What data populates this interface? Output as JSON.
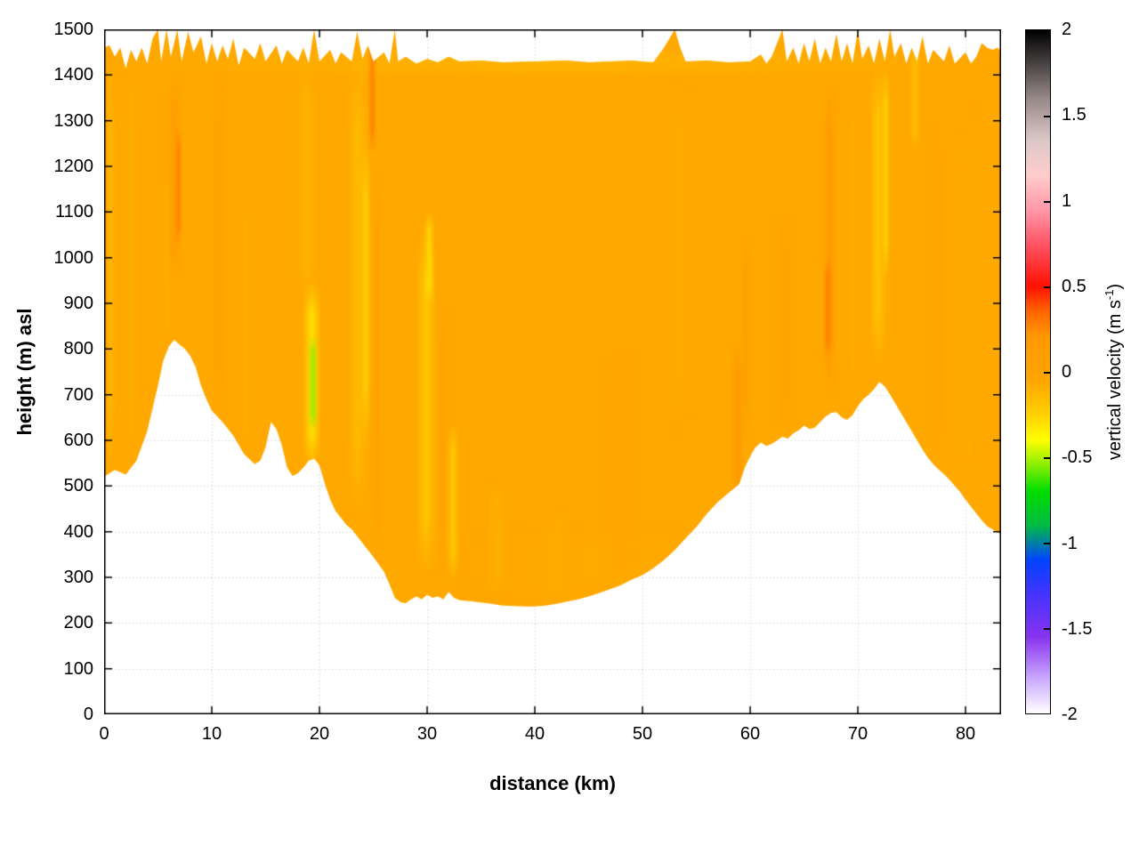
{
  "figure": {
    "background": "#ffffff"
  },
  "axes": {
    "xlabel": "distance (km)",
    "ylabel": "height (m) asl"
  },
  "colorbar": {
    "label_prefix": "vertical velocity (m s",
    "label_sup": "-1",
    "label_suffix": ")"
  },
  "chart_data": {
    "type": "heatmap",
    "title": "",
    "xlabel": "distance (km)",
    "ylabel": "height (m) asl",
    "colorbar_label": "vertical velocity (m s^-1)",
    "xlim": [
      0,
      83.3
    ],
    "ylim": [
      0,
      1500
    ],
    "clim": [
      -2,
      2
    ],
    "x_ticks": [
      0,
      10,
      20,
      30,
      40,
      50,
      60,
      70,
      80
    ],
    "y_ticks": [
      0,
      100,
      200,
      300,
      400,
      500,
      600,
      700,
      800,
      900,
      1000,
      1100,
      1200,
      1300,
      1400,
      1500
    ],
    "cb_ticks": [
      -2,
      -1.5,
      -1,
      -0.5,
      0,
      0.5,
      1,
      1.5,
      2
    ],
    "grid": true,
    "grid_color": "#c4c4c4",
    "base_color": "#FFA800",
    "palette": [
      {
        "v": -2.0,
        "c": "#ffffff"
      },
      {
        "v": -1.8,
        "c": "#ccaaff"
      },
      {
        "v": -1.55,
        "c": "#8833ee"
      },
      {
        "v": -1.3,
        "c": "#4433ff"
      },
      {
        "v": -1.1,
        "c": "#0044ff"
      },
      {
        "v": -0.9,
        "c": "#00bb44"
      },
      {
        "v": -0.7,
        "c": "#00dd00"
      },
      {
        "v": -0.55,
        "c": "#88ee00"
      },
      {
        "v": -0.4,
        "c": "#ffff00"
      },
      {
        "v": -0.25,
        "c": "#ffd000"
      },
      {
        "v": -0.05,
        "c": "#ffa500"
      },
      {
        "v": 0.2,
        "c": "#ff9900"
      },
      {
        "v": 0.35,
        "c": "#ff6600"
      },
      {
        "v": 0.5,
        "c": "#ff1100"
      },
      {
        "v": 0.75,
        "c": "#ff5566"
      },
      {
        "v": 0.95,
        "c": "#ff99aa"
      },
      {
        "v": 1.15,
        "c": "#ffcccc"
      },
      {
        "v": 1.35,
        "c": "#ddc8c8"
      },
      {
        "v": 1.6,
        "c": "#988888"
      },
      {
        "v": 1.8,
        "c": "#4a4444"
      },
      {
        "v": 2.0,
        "c": "#000000"
      }
    ],
    "terrain": {
      "x": [
        0,
        1,
        2,
        3,
        4,
        5,
        5.5,
        6,
        6.5,
        7,
        7.5,
        8,
        8.5,
        9,
        9.5,
        10,
        11,
        12,
        13,
        14,
        14.5,
        15,
        15.5,
        16,
        16.5,
        17,
        17.5,
        18,
        18.5,
        19,
        19.5,
        20,
        20.5,
        21,
        21.5,
        22,
        22.5,
        23,
        24,
        25,
        26,
        26.5,
        27,
        27.5,
        28,
        28.5,
        29,
        29.5,
        30,
        30.5,
        31,
        31.5,
        32,
        32.5,
        33,
        34,
        35,
        36,
        37,
        38,
        39,
        40,
        41,
        42,
        43,
        44,
        45,
        46,
        47,
        48,
        49,
        50,
        51,
        52,
        53,
        54,
        55,
        56,
        57,
        58,
        58.5,
        59,
        59.5,
        60,
        60.5,
        61,
        61.5,
        62,
        62.5,
        63,
        63.5,
        64,
        64.5,
        65,
        65.5,
        66,
        66.5,
        67,
        67.5,
        68,
        68.5,
        69,
        69.5,
        70,
        70.5,
        71,
        71.5,
        72,
        72.5,
        73,
        73.5,
        74,
        74.5,
        75,
        75.5,
        76,
        76.5,
        77,
        77.5,
        78,
        78.5,
        79,
        79.5,
        80,
        80.5,
        81,
        81.5,
        82,
        82.5,
        83,
        83.3
      ],
      "h": [
        520,
        535,
        525,
        555,
        620,
        720,
        775,
        805,
        820,
        810,
        800,
        785,
        760,
        720,
        690,
        665,
        640,
        610,
        570,
        548,
        555,
        585,
        640,
        625,
        590,
        540,
        522,
        528,
        540,
        555,
        560,
        545,
        505,
        470,
        445,
        430,
        415,
        405,
        375,
        345,
        312,
        285,
        255,
        246,
        243,
        252,
        258,
        252,
        262,
        255,
        258,
        252,
        268,
        255,
        250,
        248,
        245,
        242,
        238,
        237,
        236,
        236,
        238,
        242,
        247,
        252,
        258,
        266,
        274,
        283,
        295,
        305,
        320,
        338,
        360,
        385,
        410,
        440,
        465,
        485,
        495,
        505,
        540,
        565,
        585,
        595,
        588,
        592,
        600,
        608,
        604,
        615,
        622,
        632,
        625,
        628,
        640,
        652,
        660,
        662,
        650,
        645,
        655,
        675,
        690,
        700,
        712,
        728,
        718,
        700,
        680,
        660,
        640,
        620,
        600,
        580,
        562,
        548,
        536,
        526,
        514,
        500,
        487,
        470,
        455,
        440,
        425,
        412,
        405,
        398,
        395
      ]
    },
    "top": {
      "x": [
        0,
        0.5,
        1,
        1.5,
        2,
        2.5,
        3,
        3.5,
        4,
        4.5,
        5,
        5.3,
        5.8,
        6.2,
        6.8,
        7.2,
        7.8,
        8.3,
        9,
        9.5,
        10,
        10.5,
        11,
        11.5,
        12,
        12.5,
        13,
        14,
        14.5,
        15,
        16,
        16.5,
        17,
        18,
        18.5,
        19,
        19.5,
        20,
        21,
        21.5,
        22,
        23,
        23.5,
        24,
        24.5,
        25,
        26,
        26.5,
        27,
        27.3,
        28,
        29,
        30,
        31,
        32,
        33,
        35,
        37,
        40,
        43,
        45,
        47,
        49,
        51,
        52,
        53,
        53.5,
        54,
        56,
        58,
        60,
        61,
        61.5,
        62,
        63,
        63.4,
        64,
        64.5,
        65,
        65.5,
        66,
        66.5,
        67,
        67.5,
        68,
        68.5,
        69,
        69.5,
        70,
        70.4,
        71,
        71.5,
        72,
        72.5,
        73,
        73.4,
        74,
        74.5,
        75,
        75.5,
        76,
        76.5,
        77,
        78,
        78.5,
        79,
        80,
        80.5,
        81,
        81.5,
        82,
        82.5,
        83,
        83.3
      ],
      "h": [
        1460,
        1465,
        1440,
        1460,
        1415,
        1455,
        1430,
        1460,
        1425,
        1480,
        1500,
        1430,
        1500,
        1440,
        1500,
        1430,
        1495,
        1450,
        1485,
        1425,
        1470,
        1430,
        1465,
        1435,
        1480,
        1420,
        1460,
        1435,
        1470,
        1430,
        1465,
        1425,
        1455,
        1430,
        1460,
        1425,
        1500,
        1430,
        1455,
        1425,
        1450,
        1430,
        1495,
        1435,
        1465,
        1430,
        1450,
        1425,
        1500,
        1430,
        1440,
        1425,
        1435,
        1428,
        1440,
        1430,
        1432,
        1428,
        1430,
        1432,
        1428,
        1430,
        1432,
        1428,
        1460,
        1500,
        1460,
        1430,
        1432,
        1428,
        1430,
        1445,
        1425,
        1440,
        1500,
        1430,
        1460,
        1425,
        1470,
        1430,
        1480,
        1425,
        1460,
        1430,
        1490,
        1430,
        1470,
        1425,
        1500,
        1435,
        1465,
        1425,
        1480,
        1430,
        1500,
        1440,
        1470,
        1425,
        1460,
        1430,
        1485,
        1425,
        1455,
        1430,
        1465,
        1425,
        1450,
        1425,
        1440,
        1470,
        1460,
        1455,
        1460,
        1450
      ]
    },
    "streaks": [
      {
        "x": 0.6,
        "w": 1.2,
        "y0": 520,
        "y1": 1440,
        "v": -0.18,
        "a": 0.5
      },
      {
        "x": 2.6,
        "w": 1.0,
        "y0": 540,
        "y1": 1430,
        "v": -0.15,
        "a": 0.45
      },
      {
        "x": 5.8,
        "w": 0.8,
        "y0": 800,
        "y1": 1200,
        "v": -0.15,
        "a": 0.4
      },
      {
        "x": 6.6,
        "w": 1.4,
        "y0": 950,
        "y1": 1400,
        "v": 0.2,
        "a": 0.7
      },
      {
        "x": 6.9,
        "w": 0.7,
        "y0": 1030,
        "y1": 1280,
        "v": 0.3,
        "a": 0.7
      },
      {
        "x": 10.6,
        "w": 1.2,
        "y0": 650,
        "y1": 1420,
        "v": 0.12,
        "a": 0.45
      },
      {
        "x": 13.2,
        "w": 1.0,
        "y0": 560,
        "y1": 1150,
        "v": -0.15,
        "a": 0.4
      },
      {
        "x": 18.8,
        "w": 2.2,
        "y0": 900,
        "y1": 1430,
        "v": -0.18,
        "a": 0.5
      },
      {
        "x": 19.3,
        "w": 1.8,
        "y0": 540,
        "y1": 950,
        "v": -0.35,
        "a": 0.8
      },
      {
        "x": 19.4,
        "w": 0.9,
        "y0": 620,
        "y1": 830,
        "v": -0.55,
        "a": 0.8
      },
      {
        "x": 23.6,
        "w": 2.4,
        "y0": 420,
        "y1": 1460,
        "v": -0.22,
        "a": 0.55
      },
      {
        "x": 24.3,
        "w": 1.0,
        "y0": 600,
        "y1": 1250,
        "v": -0.3,
        "a": 0.6
      },
      {
        "x": 24.9,
        "w": 0.9,
        "y0": 1230,
        "y1": 1500,
        "v": 0.28,
        "a": 0.8
      },
      {
        "x": 25.4,
        "w": 0.6,
        "y0": 350,
        "y1": 1200,
        "v": 0.15,
        "a": 0.5
      },
      {
        "x": 29.9,
        "w": 2.0,
        "y0": 300,
        "y1": 1080,
        "v": -0.28,
        "a": 0.65
      },
      {
        "x": 30.2,
        "w": 1.0,
        "y0": 900,
        "y1": 1100,
        "v": -0.35,
        "a": 0.6
      },
      {
        "x": 31.4,
        "w": 0.8,
        "y0": 300,
        "y1": 900,
        "v": 0.12,
        "a": 0.4
      },
      {
        "x": 32.4,
        "w": 1.2,
        "y0": 290,
        "y1": 640,
        "v": -0.3,
        "a": 0.6
      },
      {
        "x": 36.5,
        "w": 2.2,
        "y0": 250,
        "y1": 520,
        "v": -0.15,
        "a": 0.4
      },
      {
        "x": 42,
        "w": 2.0,
        "y0": 240,
        "y1": 460,
        "v": -0.13,
        "a": 0.35
      },
      {
        "x": 48,
        "w": 2.5,
        "y0": 290,
        "y1": 800,
        "v": 0.1,
        "a": 0.3
      },
      {
        "x": 53.5,
        "w": 1.8,
        "y0": 600,
        "y1": 1420,
        "v": -0.12,
        "a": 0.35
      },
      {
        "x": 58.8,
        "w": 1.2,
        "y0": 400,
        "y1": 820,
        "v": 0.22,
        "a": 0.6
      },
      {
        "x": 59.6,
        "w": 0.9,
        "y0": 600,
        "y1": 1050,
        "v": 0.15,
        "a": 0.5
      },
      {
        "x": 63.2,
        "w": 1.0,
        "y0": 620,
        "y1": 1100,
        "v": 0.12,
        "a": 0.4
      },
      {
        "x": 67.4,
        "w": 1.3,
        "y0": 700,
        "y1": 1380,
        "v": 0.22,
        "a": 0.65
      },
      {
        "x": 67.2,
        "w": 0.8,
        "y0": 780,
        "y1": 1000,
        "v": 0.32,
        "a": 0.6
      },
      {
        "x": 69.5,
        "w": 0.9,
        "y0": 700,
        "y1": 1350,
        "v": -0.15,
        "a": 0.4
      },
      {
        "x": 71.9,
        "w": 1.8,
        "y0": 760,
        "y1": 1430,
        "v": -0.28,
        "a": 0.6
      },
      {
        "x": 72.6,
        "w": 0.9,
        "y0": 950,
        "y1": 1420,
        "v": -0.35,
        "a": 0.55
      },
      {
        "x": 75.3,
        "w": 1.1,
        "y0": 1230,
        "y1": 1470,
        "v": -0.25,
        "a": 0.5
      },
      {
        "x": 77.5,
        "w": 1.0,
        "y0": 560,
        "y1": 1300,
        "v": 0.1,
        "a": 0.3
      },
      {
        "x": 80.3,
        "w": 1.6,
        "y0": 430,
        "y1": 1350,
        "v": -0.12,
        "a": 0.35
      }
    ],
    "bands": [
      {
        "x0": 0,
        "x1": 83.3,
        "y0": 1395,
        "y1": 1462,
        "v": -0.18,
        "a": 0.45
      },
      {
        "x0": 33,
        "x1": 58,
        "y0": 240,
        "y1": 420,
        "v": -0.1,
        "a": 0.3
      }
    ]
  }
}
